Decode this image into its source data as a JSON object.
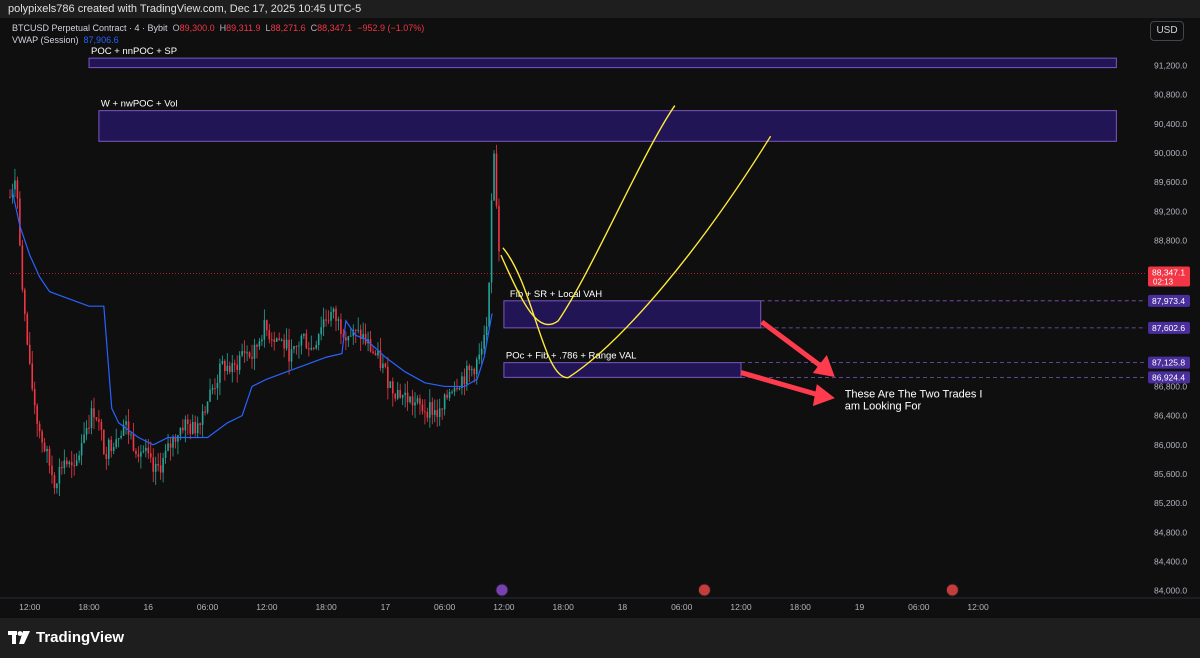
{
  "header": {
    "credit": "polypixels786 created with TradingView.com, Dec 17, 2025 10:45 UTC-5"
  },
  "legend": {
    "symbol": "BTCUSD Perpetual Contract · 4 · Bybit",
    "o_label": "O",
    "o_value": "89,300.0",
    "h_label": "H",
    "h_value": "89,311.9",
    "l_label": "L",
    "l_value": "88,271.6",
    "c_label": "C",
    "c_value": "88,347.1",
    "change": "−952.9 (−1.07%)",
    "vwap_label": "VWAP (Session)",
    "vwap_value": "87,906.6"
  },
  "currency_button": "USD",
  "footer": {
    "brand": "TradingView"
  },
  "colors": {
    "bull": "#26a69a",
    "bear": "#f23645",
    "vwap": "#2962ff",
    "zone_fill": "#311b92",
    "zone_border": "#7e57c2",
    "annotation": "#ffeb3b",
    "arrow": "#ff3b4e"
  },
  "chart_data": {
    "type": "candlestick",
    "symbol": "BTCUSD",
    "ylim": [
      83900,
      91850
    ],
    "y_ticks": [
      "84,000.0",
      "84,400.0",
      "84,800.0",
      "85,200.0",
      "85,600.0",
      "86,000.0",
      "86,400.0",
      "86,800.0",
      "88,800.0",
      "89,200.0",
      "89,600.0",
      "90,000.0",
      "90,400.0",
      "90,800.0",
      "91,200.0"
    ],
    "x_ticks": [
      {
        "label": "12:00",
        "t": 2
      },
      {
        "label": "18:00",
        "t": 8
      },
      {
        "label": "16",
        "t": 14
      },
      {
        "label": "06:00",
        "t": 20
      },
      {
        "label": "12:00",
        "t": 26
      },
      {
        "label": "18:00",
        "t": 32
      },
      {
        "label": "17",
        "t": 38
      },
      {
        "label": "06:00",
        "t": 44
      },
      {
        "label": "12:00",
        "t": 50
      },
      {
        "label": "18:00",
        "t": 56
      },
      {
        "label": "18",
        "t": 62
      },
      {
        "label": "06:00",
        "t": 68
      },
      {
        "label": "12:00",
        "t": 74
      },
      {
        "label": "18:00",
        "t": 80
      },
      {
        "label": "19",
        "t": 86
      },
      {
        "label": "06:00",
        "t": 92
      },
      {
        "label": "12:00",
        "t": 98
      }
    ],
    "price_path": [
      [
        0,
        89400
      ],
      [
        0.6,
        89800
      ],
      [
        1.2,
        88200
      ],
      [
        2,
        87000
      ],
      [
        2.8,
        86300
      ],
      [
        3.6,
        85900
      ],
      [
        4.5,
        85500
      ],
      [
        5.5,
        85800
      ],
      [
        6.5,
        85600
      ],
      [
        7.5,
        86200
      ],
      [
        8.6,
        86500
      ],
      [
        9.6,
        85900
      ],
      [
        10.6,
        86100
      ],
      [
        11.6,
        86300
      ],
      [
        12.6,
        86000
      ],
      [
        13.6,
        85900
      ],
      [
        14.6,
        85600
      ],
      [
        15.6,
        85800
      ],
      [
        16.6,
        86100
      ],
      [
        17.6,
        86300
      ],
      [
        18.6,
        86200
      ],
      [
        19.6,
        86500
      ],
      [
        20.6,
        86800
      ],
      [
        21.6,
        87100
      ],
      [
        22.6,
        87000
      ],
      [
        23.6,
        87300
      ],
      [
        24.6,
        87200
      ],
      [
        25.6,
        87600
      ],
      [
        26.6,
        87500
      ],
      [
        27.6,
        87400
      ],
      [
        28.6,
        87200
      ],
      [
        29.6,
        87500
      ],
      [
        30.6,
        87300
      ],
      [
        31.6,
        87700
      ],
      [
        32.6,
        87800
      ],
      [
        33.6,
        87600
      ],
      [
        34.6,
        87500
      ],
      [
        35.6,
        87500
      ],
      [
        36.6,
        87300
      ],
      [
        37.6,
        87100
      ],
      [
        38.6,
        86800
      ],
      [
        39.6,
        86700
      ],
      [
        40.6,
        86600
      ],
      [
        41.6,
        86500
      ],
      [
        42.6,
        86500
      ],
      [
        43.6,
        86400
      ],
      [
        44.6,
        86800
      ],
      [
        45.6,
        86900
      ],
      [
        46.6,
        87000
      ],
      [
        47.6,
        87200
      ],
      [
        48.4,
        87600
      ],
      [
        48.9,
        90100
      ],
      [
        49.2,
        89400
      ],
      [
        49.6,
        88400
      ]
    ],
    "last_price": "88,347.1",
    "countdown": "02:13",
    "vwap_path": [
      [
        0.2,
        89500
      ],
      [
        1,
        89000
      ],
      [
        2,
        88600
      ],
      [
        3,
        88300
      ],
      [
        4,
        88100
      ],
      [
        6,
        88000
      ],
      [
        8,
        87900
      ],
      [
        9.5,
        87900
      ],
      [
        10.3,
        86500
      ],
      [
        11,
        86300
      ],
      [
        13,
        86100
      ],
      [
        14.5,
        86000
      ],
      [
        16,
        86100
      ],
      [
        18,
        86100
      ],
      [
        20,
        86100
      ],
      [
        22,
        86300
      ],
      [
        23.5,
        86400
      ],
      [
        24.5,
        86800
      ],
      [
        26,
        86900
      ],
      [
        28,
        87000
      ],
      [
        30,
        87100
      ],
      [
        32,
        87200
      ],
      [
        33.6,
        87250
      ],
      [
        34,
        87700
      ],
      [
        35,
        87500
      ],
      [
        36,
        87450
      ],
      [
        38,
        87200
      ],
      [
        40,
        87000
      ],
      [
        42,
        86850
      ],
      [
        44,
        86800
      ],
      [
        46,
        86800
      ],
      [
        47.3,
        86900
      ],
      [
        48,
        87200
      ],
      [
        48.8,
        87800
      ]
    ],
    "zones": [
      {
        "label": "POC + nnPOC + SP",
        "top": 91300,
        "bottom": 91170,
        "t_start": 8,
        "t_end": 112
      },
      {
        "label": "W + nwPOC + Vol",
        "top": 90580,
        "bottom": 90160,
        "t_start": 9,
        "t_end": 112
      },
      {
        "label": "Fib + SR + Local VAH",
        "top": 87973.4,
        "bottom": 87602.6,
        "t_start": 50,
        "t_end": 76
      },
      {
        "label": "POc + Fib + .786 + Range VAL",
        "top": 87125.8,
        "bottom": 86924.4,
        "t_start": 50,
        "t_end": 74
      }
    ],
    "level_tags": [
      {
        "value": "87,973.4",
        "price": 87973.4
      },
      {
        "value": "87,602.6",
        "price": 87602.6
      },
      {
        "value": "87,125.8",
        "price": 87125.8
      },
      {
        "value": "86,924.4",
        "price": 86924.4
      }
    ],
    "annotation": "These Are The Two Trades I am Looking For"
  }
}
